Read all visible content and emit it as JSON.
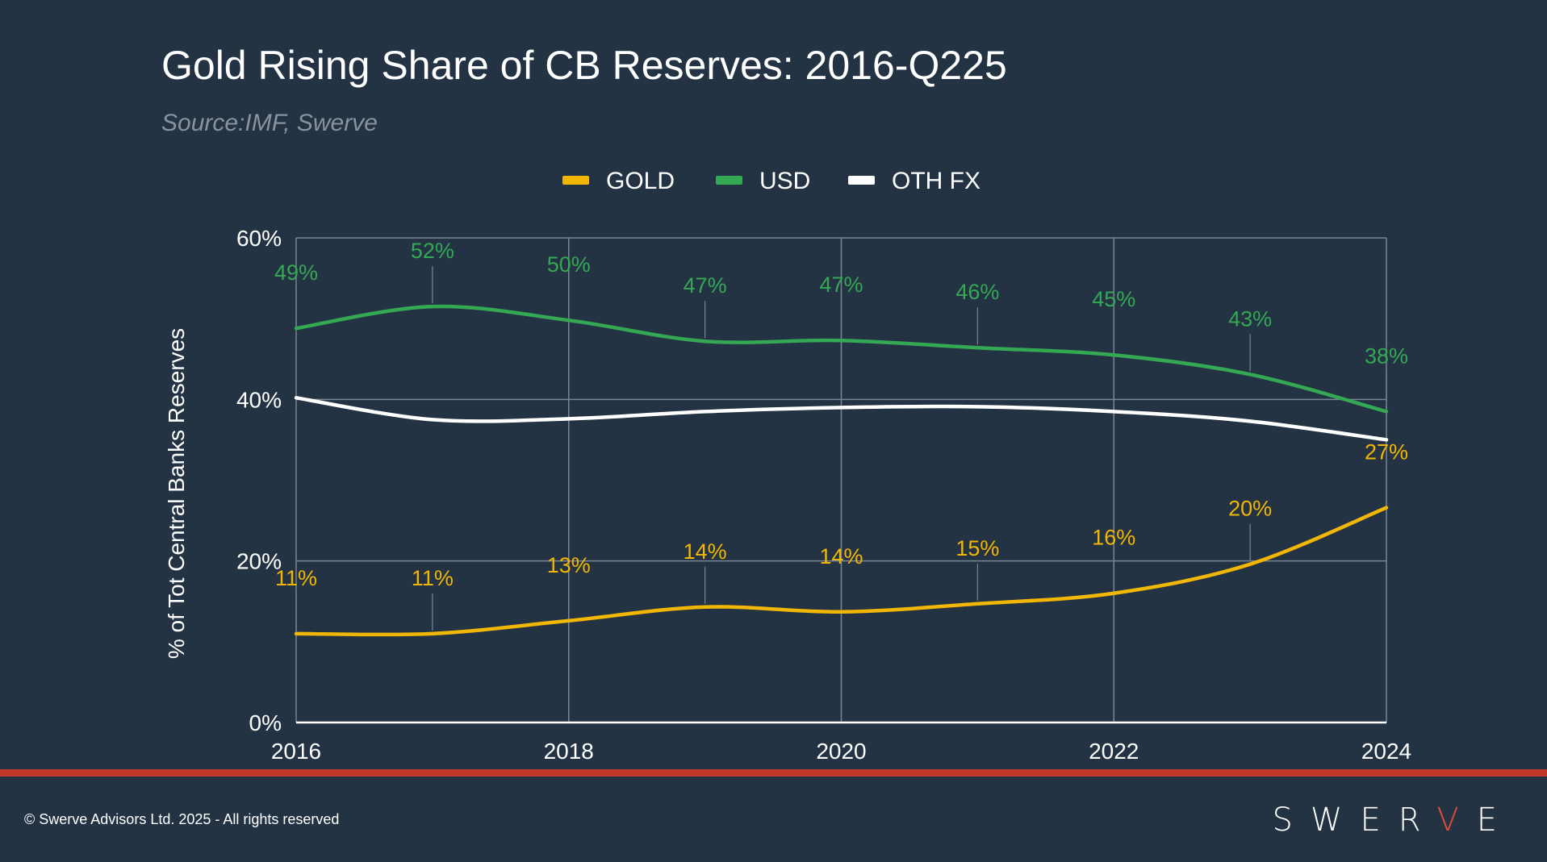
{
  "chart_data": {
    "type": "line",
    "title": "Gold Rising Share of CB Reserves: 2016-Q225",
    "subtitle": "Source:IMF, Swerve",
    "xlabel": "",
    "ylabel": "% of Tot Central Banks Reserves",
    "x": [
      2016,
      2017,
      2018,
      2019,
      2020,
      2021,
      2022,
      2023,
      2024
    ],
    "x_ticks": [
      "2016",
      "2018",
      "2020",
      "2022",
      "2024"
    ],
    "x_tick_values": [
      2016,
      2018,
      2020,
      2022,
      2024
    ],
    "y_ticks": [
      "0%",
      "20%",
      "40%",
      "60%"
    ],
    "y_tick_values": [
      0,
      20,
      40,
      60
    ],
    "ylim": [
      0,
      60
    ],
    "xlim": [
      2016,
      2024
    ],
    "grid": true,
    "legend_position": "top",
    "series": [
      {
        "name": "GOLD",
        "color": "#f2b705",
        "values": [
          11,
          11,
          12.6,
          14.3,
          13.7,
          14.7,
          16,
          19.6,
          26.6
        ],
        "labels": [
          "11%",
          "11%",
          "13%",
          "14%",
          "14%",
          "15%",
          "16%",
          "20%",
          "27%"
        ]
      },
      {
        "name": "USD",
        "color": "#34a853",
        "values": [
          48.8,
          51.5,
          49.8,
          47.2,
          47.3,
          46.4,
          45.5,
          43.1,
          38.5
        ],
        "labels": [
          "49%",
          "52%",
          "50%",
          "47%",
          "47%",
          "46%",
          "45%",
          "43%",
          "38%"
        ]
      },
      {
        "name": "OTH FX",
        "color": "#ffffff",
        "values": [
          40.2,
          37.5,
          37.6,
          38.5,
          39,
          39.1,
          38.5,
          37.3,
          35
        ],
        "labels": []
      }
    ]
  },
  "footer": {
    "copyright": "© Swerve Advisors Ltd. 2025 - All rights reserved",
    "logo_main": "SWER",
    "logo_accent": "V",
    "logo_end": "E"
  },
  "colors": {
    "background": "#233344",
    "accent_bar": "#c0392b",
    "grid": "#7a8592"
  }
}
